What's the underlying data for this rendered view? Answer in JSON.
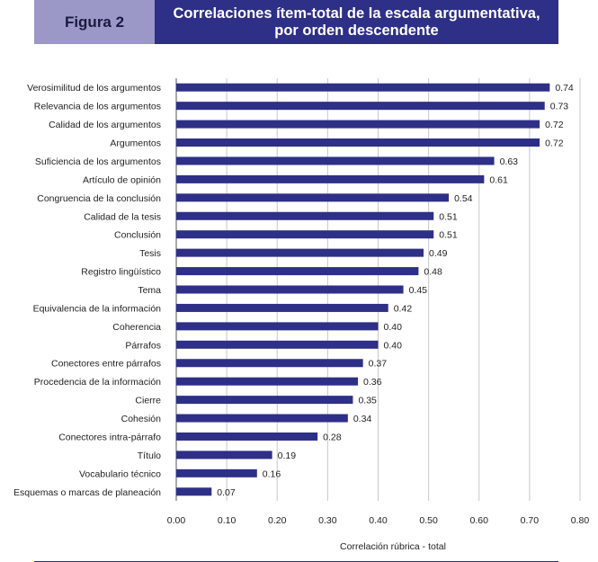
{
  "header": {
    "label": "Figura 2",
    "title_line1": "Correlaciones ítem-total de la escala argumentativa,",
    "title_line2": "por orden descendente"
  },
  "colors": {
    "bar": "#2e2f86",
    "banner_dark": "#2e2f86",
    "banner_light": "#9b98c8",
    "grid": "#c8c8c8"
  },
  "chart_data": {
    "type": "bar",
    "orientation": "horizontal",
    "title": "Correlaciones ítem-total de la escala argumentativa, por orden descendente",
    "xlabel": "Correlación rúbrica - total",
    "ylabel": "",
    "xlim": [
      0,
      0.8
    ],
    "xticks": [
      "0.00",
      "0.10",
      "0.20",
      "0.30",
      "0.40",
      "0.50",
      "0.60",
      "0.70",
      "0.80"
    ],
    "categories": [
      "Verosimilitud de los argumentos",
      "Relevancia de los argumentos",
      "Calidad de los argumentos",
      "Argumentos",
      "Suficiencia de los argumentos",
      "Artículo de opinión",
      "Congruencia de la conclusión",
      "Calidad de la tesis",
      "Conclusión",
      "Tesis",
      "Registro lingüístico",
      "Tema",
      "Equivalencia de la información",
      "Coherencia",
      "Párrafos",
      "Conectores entre párrafos",
      "Procedencia de la información",
      "Cierre",
      "Cohesión",
      "Conectores intra-párrafo",
      "Título",
      "Vocabulario técnico",
      "Esquemas o marcas de planeación"
    ],
    "values": [
      0.74,
      0.73,
      0.72,
      0.72,
      0.63,
      0.61,
      0.54,
      0.51,
      0.51,
      0.49,
      0.48,
      0.45,
      0.42,
      0.4,
      0.4,
      0.37,
      0.36,
      0.35,
      0.34,
      0.28,
      0.19,
      0.16,
      0.07
    ],
    "labels": [
      "0.74",
      "0.73",
      "0.72",
      "0.72",
      "0.63",
      "0.61",
      "0.54",
      "0.51",
      "0.51",
      "0.49",
      "0.48",
      "0.45",
      "0.42",
      "0.40",
      "0.40",
      "0.37",
      "0.36",
      "0.35",
      "0.34",
      "0.28",
      "0.19",
      "0.16",
      "0.07"
    ],
    "grid": true
  }
}
